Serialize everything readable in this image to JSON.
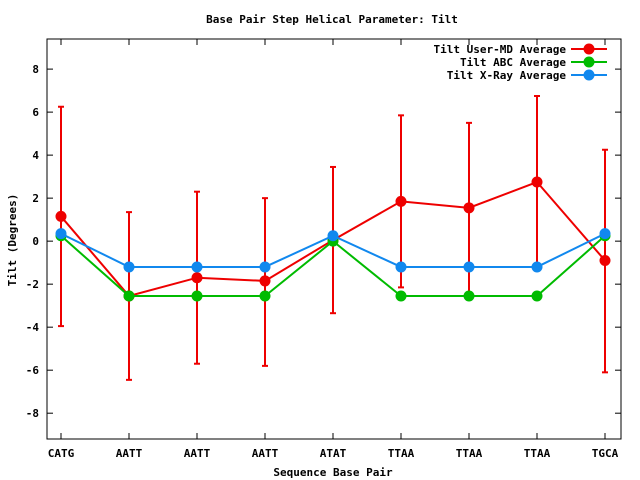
{
  "chart_data": {
    "type": "line",
    "title": "Base Pair Step Helical Parameter: Tilt",
    "xlabel": "Sequence Base Pair",
    "ylabel": "Tilt (Degrees)",
    "categories": [
      "CATG",
      "AATT",
      "AATT",
      "AATT",
      "ATAT",
      "TTAA",
      "TTAA",
      "TTAA",
      "TGCA"
    ],
    "ylim": [
      -9.2,
      9.4
    ],
    "yticks": [
      -8,
      -6,
      -4,
      -2,
      0,
      2,
      4,
      6,
      8
    ],
    "legend_position": "top-right",
    "grid": false,
    "series": [
      {
        "name": "Tilt User-MD Average",
        "color": "#ee0000",
        "values": [
          1.15,
          -2.55,
          -1.7,
          -1.85,
          0.05,
          1.85,
          1.55,
          2.75,
          -0.9
        ],
        "error_low": [
          -3.95,
          -6.45,
          -5.7,
          -5.8,
          -3.35,
          -2.15,
          -2.45,
          -1.25,
          -6.1
        ],
        "error_high": [
          6.25,
          1.35,
          2.3,
          2.0,
          3.45,
          5.85,
          5.5,
          6.75,
          4.25
        ]
      },
      {
        "name": "Tilt ABC Average",
        "color": "#00bb00",
        "values": [
          0.25,
          -2.55,
          -2.55,
          -2.55,
          0.0,
          -2.55,
          -2.55,
          -2.55,
          0.25
        ]
      },
      {
        "name": "Tilt X-Ray Average",
        "color": "#1188ee",
        "values": [
          0.35,
          -1.2,
          -1.2,
          -1.2,
          0.25,
          -1.2,
          -1.2,
          -1.2,
          0.35
        ]
      }
    ]
  }
}
